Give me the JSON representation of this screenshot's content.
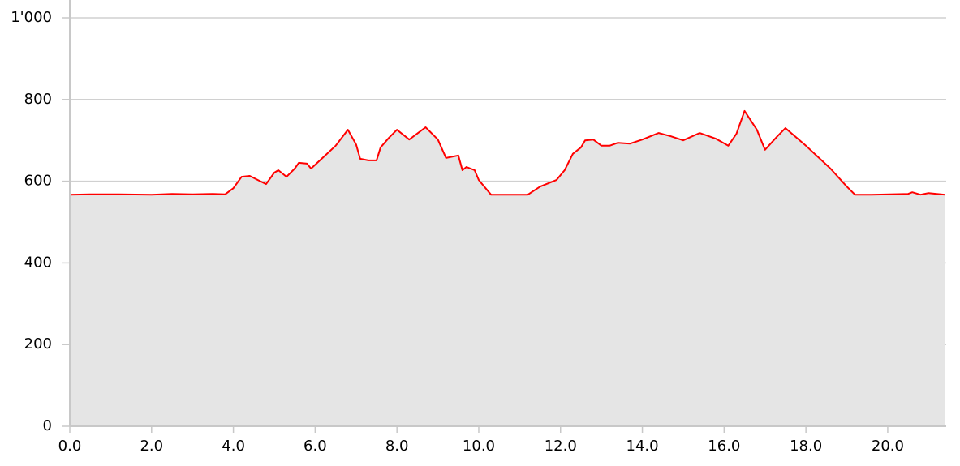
{
  "chart_data": {
    "type": "area",
    "x": [
      0,
      0.5,
      1.2,
      2.0,
      2.5,
      3.0,
      3.5,
      3.8,
      4.0,
      4.2,
      4.4,
      4.6,
      4.8,
      5.0,
      5.1,
      5.3,
      5.5,
      5.6,
      5.8,
      5.9,
      6.2,
      6.5,
      6.8,
      7.0,
      7.1,
      7.3,
      7.5,
      7.6,
      7.8,
      8.0,
      8.3,
      8.7,
      8.8,
      9.0,
      9.2,
      9.5,
      9.6,
      9.7,
      9.9,
      10.0,
      10.3,
      11.0,
      11.2,
      11.5,
      11.9,
      12.1,
      12.3,
      12.5,
      12.6,
      12.8,
      13.0,
      13.2,
      13.4,
      13.7,
      14.0,
      14.4,
      14.7,
      15.0,
      15.4,
      15.8,
      16.1,
      16.3,
      16.5,
      16.8,
      17.0,
      17.3,
      17.5,
      18.0,
      18.6,
      19.0,
      19.2,
      19.6,
      20.5,
      20.6,
      20.8,
      21.0,
      21.4
    ],
    "values": [
      567,
      568,
      568,
      567,
      569,
      568,
      569,
      568,
      583,
      611,
      613,
      603,
      593,
      621,
      627,
      611,
      631,
      645,
      643,
      631,
      659,
      687,
      726,
      690,
      655,
      651,
      651,
      683,
      706,
      726,
      702,
      732,
      722,
      702,
      657,
      663,
      627,
      635,
      627,
      603,
      567,
      567,
      567,
      587,
      603,
      627,
      667,
      683,
      700,
      702,
      687,
      687,
      694,
      692,
      702,
      718,
      710,
      700,
      718,
      704,
      687,
      716,
      772,
      726,
      677,
      710,
      730,
      687,
      631,
      587,
      567,
      567,
      569,
      573,
      567,
      571,
      567
    ],
    "color": "#ff0000",
    "fill": "#e5e5e5",
    "xlim": [
      0,
      21.43
    ],
    "ylim": [
      0,
      1000
    ],
    "xticks": [
      {
        "value": 0,
        "label": "0.0"
      },
      {
        "value": 2,
        "label": "2.0"
      },
      {
        "value": 4,
        "label": "4.0"
      },
      {
        "value": 6,
        "label": "6.0"
      },
      {
        "value": 8,
        "label": "8.0"
      },
      {
        "value": 10,
        "label": "10.0"
      },
      {
        "value": 12,
        "label": "12.0"
      },
      {
        "value": 14,
        "label": "14.0"
      },
      {
        "value": 16,
        "label": "16.0"
      },
      {
        "value": 18,
        "label": "18.0"
      },
      {
        "value": 20,
        "label": "20.0"
      }
    ],
    "yticks": [
      0,
      200,
      400,
      600,
      800,
      {
        "value": 1000,
        "label": "1'000"
      }
    ],
    "grid": true
  }
}
